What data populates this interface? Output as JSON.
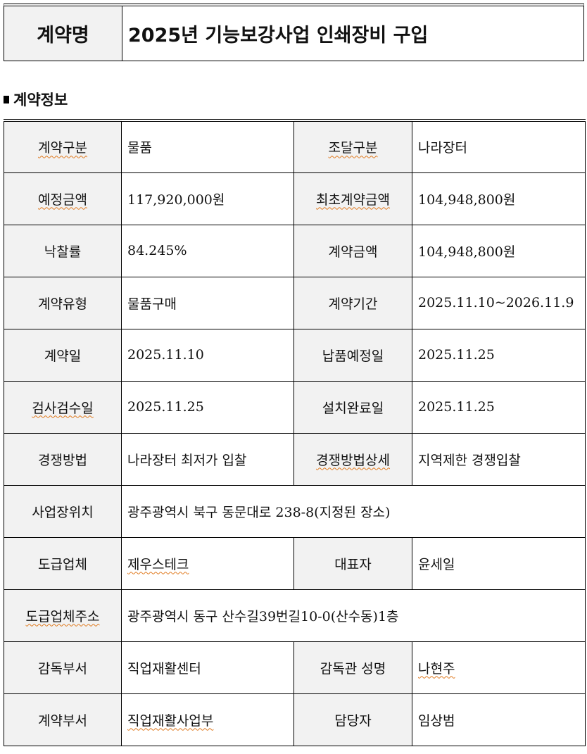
{
  "contract_name": {
    "label": "계약명",
    "value": "2025년 기능보강사업 인쇄장비 구입"
  },
  "section_title": "계약정보",
  "rows": [
    {
      "l1": "계약구분",
      "v1": "물품",
      "l2": "조달구분",
      "v2": "나라장터"
    },
    {
      "l1": "예정금액",
      "v1": "117,920,000원",
      "l2": "최초계약금액",
      "v2": "104,948,800원"
    },
    {
      "l1": "낙찰률",
      "v1": "84.245%",
      "l2": "계약금액",
      "v2": "104,948,800원"
    },
    {
      "l1": "계약유형",
      "v1": "물품구매",
      "l2": "계약기간",
      "v2": "2025.11.10~2026.11.9"
    },
    {
      "l1": "계약일",
      "v1": "2025.11.10",
      "l2": "납품예정일",
      "v2": "2025.11.25"
    },
    {
      "l1": "검사검수일",
      "v1": "2025.11.25",
      "l2": "설치완료일",
      "v2": "2025.11.25"
    },
    {
      "l1": "경쟁방법",
      "v1": "나라장터 최저가 입찰",
      "l2": "경쟁방법상세",
      "v2": "지역제한 경쟁입찰"
    },
    {
      "l1": "사업장위치",
      "v1": "광주광역시 북구 동문대로 238-8(지정된 장소)"
    },
    {
      "l1": "도급업체",
      "v1": "제우스테크",
      "l2": "대표자",
      "v2": "윤세일"
    },
    {
      "l1": "도급업체주소",
      "v1": "광주광역시 동구 산수길39번길10-0(산수동)1층"
    },
    {
      "l1": "감독부서",
      "v1": "직업재활센터",
      "l2": "감독관 성명",
      "v2": "나현주"
    },
    {
      "l1": "계약부서",
      "v1": "직업재활사업부",
      "l2": "담당자",
      "v2": "임상범"
    }
  ]
}
